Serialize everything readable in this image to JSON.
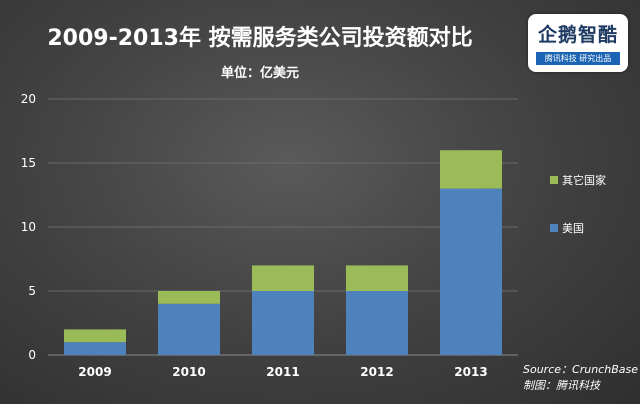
{
  "header": {
    "title": "2009-2013年 按需服务类公司投资额对比",
    "subtitle": "单位：亿美元"
  },
  "logo": {
    "main": "企鹅智酷",
    "sub": "腾讯科技  研究出品"
  },
  "footer": {
    "source": "Source：CrunchBase",
    "credit": "制图：腾讯科技"
  },
  "colors": {
    "us": "#4f81bd",
    "other": "#9bbb59"
  },
  "chart_data": {
    "type": "bar",
    "stacked": true,
    "categories": [
      "2009",
      "2010",
      "2011",
      "2012",
      "2013"
    ],
    "series": [
      {
        "name": "美国",
        "values": [
          1,
          4,
          5,
          5,
          13
        ]
      },
      {
        "name": "其它国家",
        "values": [
          1,
          1,
          2,
          2,
          3
        ]
      }
    ],
    "ylim": [
      0,
      20
    ],
    "yticks": [
      0,
      5,
      10,
      15,
      20
    ],
    "grid": true,
    "legend_position": "right"
  }
}
